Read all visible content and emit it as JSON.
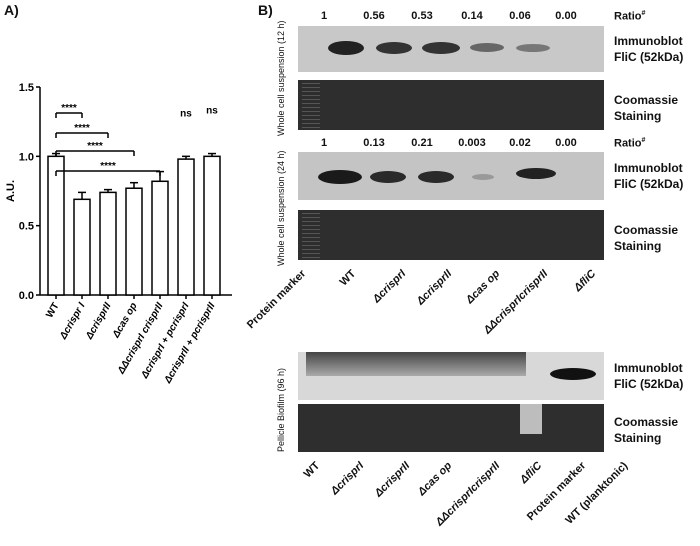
{
  "panel_a": {
    "label": "A)",
    "chart_data": {
      "type": "bar",
      "categories": [
        "WT",
        "Δcrispr I",
        "ΔcrisprII",
        "Δcas op",
        "ΔΔcrisprI crisprII",
        "ΔcrisprI + pcrisprI",
        "ΔcrisprII + pcrisprII"
      ],
      "values": [
        1.0,
        0.69,
        0.74,
        0.77,
        0.82,
        0.98,
        1.0
      ],
      "errors": [
        0.02,
        0.05,
        0.02,
        0.04,
        0.07,
        0.02,
        0.02
      ],
      "ylabel": "A.U.",
      "ylim": [
        0,
        1.5
      ],
      "yticks": [
        "0.0",
        "0.5",
        "1.0",
        "1.5"
      ],
      "significance": [
        "****",
        "****",
        "****",
        "****"
      ],
      "ns": [
        "ns",
        "ns"
      ]
    }
  },
  "panel_b": {
    "label": "B)",
    "ratio_label": "Ratio",
    "ratio_superscript": "#",
    "immunoblot_label_1": "Immunoblot",
    "immunoblot_label_2": "FliC (52kDa)",
    "coomassie_label_1": "Coomassie",
    "coomassie_label_2": "Staining",
    "section_12h": "Whole cell suspension (12 h)",
    "section_24h": "Whole cell suspension (24 h)",
    "section_96h": "Pellicle Biofilm (96 h)",
    "ratios_12h": [
      "1",
      "0.56",
      "0.53",
      "0.14",
      "0.06",
      "0.00"
    ],
    "ratios_24h": [
      "1",
      "0.13",
      "0.21",
      "0.003",
      "0.02",
      "0.00"
    ],
    "lanes_top": [
      "Protein marker",
      "WT",
      "ΔcrisprI",
      "ΔcrisprII",
      "Δcas op",
      "ΔΔcrisprIcrisprII",
      "ΔfliC"
    ],
    "lanes_bottom": [
      "WT",
      "ΔcrisprI",
      "ΔcrisprII",
      "Δcas op",
      "ΔΔcrisprIcrisprII",
      "ΔfliC",
      "Protein marker",
      "WT (planktonic)"
    ]
  }
}
